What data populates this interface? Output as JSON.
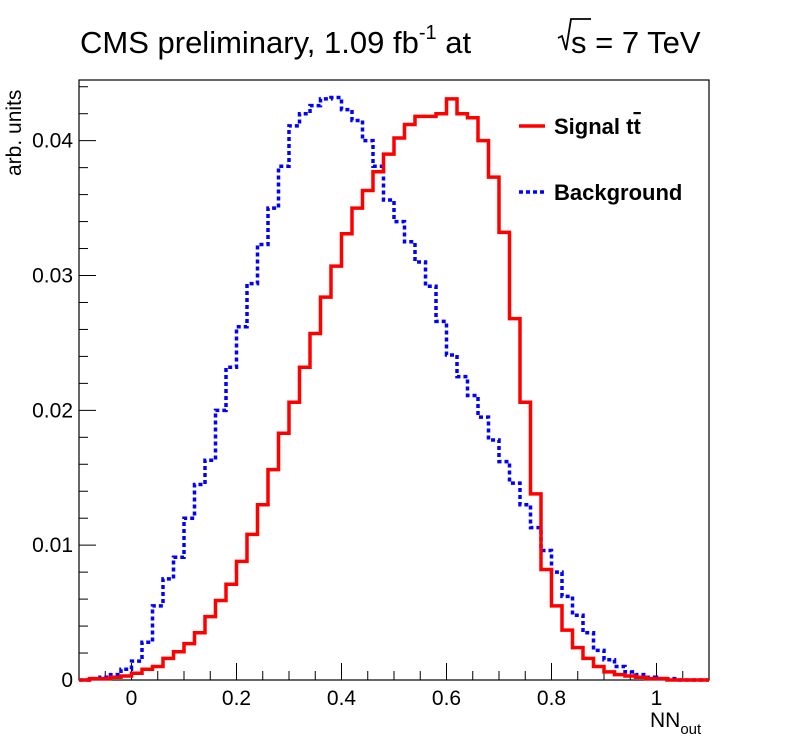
{
  "chart_data": {
    "type": "line",
    "title": "CMS preliminary, 1.09 fb",
    "title_superscript": "-1",
    "title_suffix": " at",
    "title_energy_root": "s",
    "title_energy_value": " = 7 TeV",
    "ylabel": "arb. units",
    "xlabel": "NN",
    "xlabel_subscript": "out",
    "xlim": [
      -0.1,
      1.1
    ],
    "ylim": [
      0,
      0.0445
    ],
    "x_ticks": [
      {
        "value": 0,
        "label": "0"
      },
      {
        "value": 0.2,
        "label": "0.2"
      },
      {
        "value": 0.4,
        "label": "0.4"
      },
      {
        "value": 0.6,
        "label": "0.6"
      },
      {
        "value": 0.8,
        "label": "0.8"
      },
      {
        "value": 1.0,
        "label": "1"
      }
    ],
    "y_ticks": [
      {
        "value": 0,
        "label": "0"
      },
      {
        "value": 0.01,
        "label": "0.01"
      },
      {
        "value": 0.02,
        "label": "0.02"
      },
      {
        "value": 0.03,
        "label": "0.03"
      },
      {
        "value": 0.04,
        "label": "0.04"
      }
    ],
    "bin_edges": [
      -0.1,
      1.1
    ],
    "bin_count": 60,
    "legend_position": "top-right",
    "series": [
      {
        "name": "Signal t",
        "name_overline": "t",
        "color": "#ff0000",
        "style": "solid",
        "values": [
          0.0,
          0.0001,
          0.0001,
          0.0002,
          0.0003,
          0.0005,
          0.0008,
          0.001,
          0.0016,
          0.0021,
          0.0027,
          0.0035,
          0.0047,
          0.0059,
          0.0071,
          0.0088,
          0.0108,
          0.013,
          0.0156,
          0.0183,
          0.0206,
          0.0232,
          0.0257,
          0.0284,
          0.0307,
          0.0331,
          0.035,
          0.0363,
          0.0377,
          0.039,
          0.0402,
          0.0412,
          0.0418,
          0.0418,
          0.042,
          0.0431,
          0.042,
          0.0417,
          0.04,
          0.0373,
          0.0332,
          0.0268,
          0.0206,
          0.0138,
          0.0082,
          0.0055,
          0.0037,
          0.0024,
          0.0016,
          0.001,
          0.0006,
          0.0004,
          0.0003,
          0.0002,
          0.0001,
          0.0001,
          0.0,
          0.0,
          0.0,
          0.0
        ]
      },
      {
        "name": "Background",
        "color": "#0000ff",
        "style": "dotted",
        "values": [
          0.0,
          0.0001,
          0.0002,
          0.0004,
          0.0008,
          0.0014,
          0.0028,
          0.0055,
          0.0075,
          0.0091,
          0.012,
          0.0145,
          0.0163,
          0.02,
          0.0232,
          0.0262,
          0.0294,
          0.0323,
          0.035,
          0.0381,
          0.0411,
          0.042,
          0.0426,
          0.0431,
          0.0432,
          0.0423,
          0.0415,
          0.04,
          0.0381,
          0.0356,
          0.034,
          0.0325,
          0.031,
          0.0292,
          0.0266,
          0.0241,
          0.0225,
          0.0211,
          0.0195,
          0.0178,
          0.0162,
          0.0146,
          0.013,
          0.0113,
          0.0096,
          0.008,
          0.0062,
          0.0048,
          0.0035,
          0.0022,
          0.0015,
          0.001,
          0.0006,
          0.0004,
          0.0002,
          0.0001,
          0.0001,
          0.0,
          0.0,
          0.0
        ]
      }
    ]
  }
}
